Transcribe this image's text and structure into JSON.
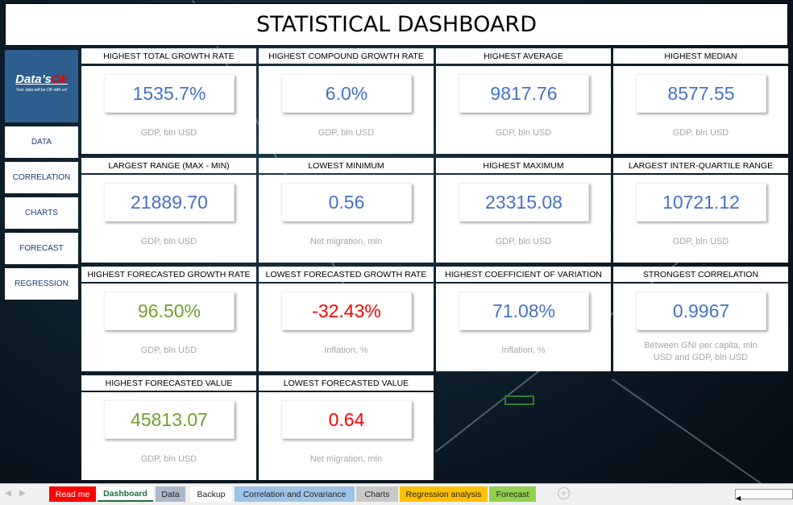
{
  "title": "STATISTICAL DASHBOARD",
  "logo": {
    "brand_a": "Data’s",
    "brand_b": "Ok",
    "tagline": "Your data will be OK with us!"
  },
  "nav": [
    {
      "label": "DATA"
    },
    {
      "label": "CORRELATION"
    },
    {
      "label": "CHARTS"
    },
    {
      "label": "FORECAST"
    },
    {
      "label": "REGRESSION"
    }
  ],
  "cards": [
    {
      "header": "HIGHEST TOTAL GROWTH RATE",
      "value": "1535.7%",
      "sub": "GDP, bln USD",
      "color": "#4472c4"
    },
    {
      "header": "HIGHEST COMPOUND GROWTH RATE",
      "value": "6.0%",
      "sub": "GDP, bln USD",
      "color": "#4472c4"
    },
    {
      "header": "HIGHEST AVERAGE",
      "value": "9817.76",
      "sub": "GDP, bln USD",
      "color": "#4472c4"
    },
    {
      "header": "HIGHEST MEDIAN",
      "value": "8577.55",
      "sub": "GDP, bln USD",
      "color": "#4472c4"
    },
    {
      "header": "LARGEST RANGE (MAX - MIN)",
      "value": "21889.70",
      "sub": "GDP, bln USD",
      "color": "#4472c4"
    },
    {
      "header": "LOWEST MINIMUM",
      "value": "0.56",
      "sub": "Net migration, mln",
      "color": "#4472c4"
    },
    {
      "header": "HIGHEST MAXIMUM",
      "value": "23315.08",
      "sub": "GDP, bln USD",
      "color": "#4472c4"
    },
    {
      "header": "LARGEST INTER-QUARTILE RANGE",
      "value": "10721.12",
      "sub": "GDP, bln USD",
      "color": "#4472c4"
    },
    {
      "header": "HIGHEST FORECASTED GROWTH RATE",
      "value": "96.50%",
      "sub": "GDP, bln USD",
      "color": "#70a030"
    },
    {
      "header": "LOWEST FORECASTED GROWTH RATE",
      "value": "-32.43%",
      "sub": "Inflation, %",
      "color": "#ff0000"
    },
    {
      "header": "HIGHEST COEFFICIENT OF VARIATION",
      "value": "71.08%",
      "sub": "Inflation, %",
      "color": "#4472c4"
    },
    {
      "header": "STRONGEST CORRELATION",
      "value": "0.9967",
      "sub": "Between GNI per capita, mln USD and GDP, bln USD",
      "color": "#4472c4"
    },
    {
      "header": "HIGHEST FORECASTED VALUE",
      "value": "45813.07",
      "sub": "GDP, bln USD",
      "color": "#70a030"
    },
    {
      "header": "LOWEST FORECASTED VALUE",
      "value": "0.64",
      "sub": "Net migration, mln",
      "color": "#ff0000"
    }
  ],
  "sheet_tabs": [
    {
      "label": "Read me",
      "bg": "#ff0000",
      "fg": "#ffffff"
    },
    {
      "label": "Dashboard",
      "bg": "#ffffff",
      "fg": "#1e6e3a",
      "active": true
    },
    {
      "label": "Data",
      "bg": "#acb9ca",
      "fg": "#222222"
    },
    {
      "label": "Backup",
      "bg": "#ffffff",
      "fg": "#222222"
    },
    {
      "label": "Correlation and Covariance",
      "bg": "#9dc3e6",
      "fg": "#222222"
    },
    {
      "label": "Charts",
      "bg": "#c9c9c9",
      "fg": "#222222"
    },
    {
      "label": "Regression analysis",
      "bg": "#ffc000",
      "fg": "#222222"
    },
    {
      "label": "Forecast",
      "bg": "#92d050",
      "fg": "#222222"
    }
  ]
}
